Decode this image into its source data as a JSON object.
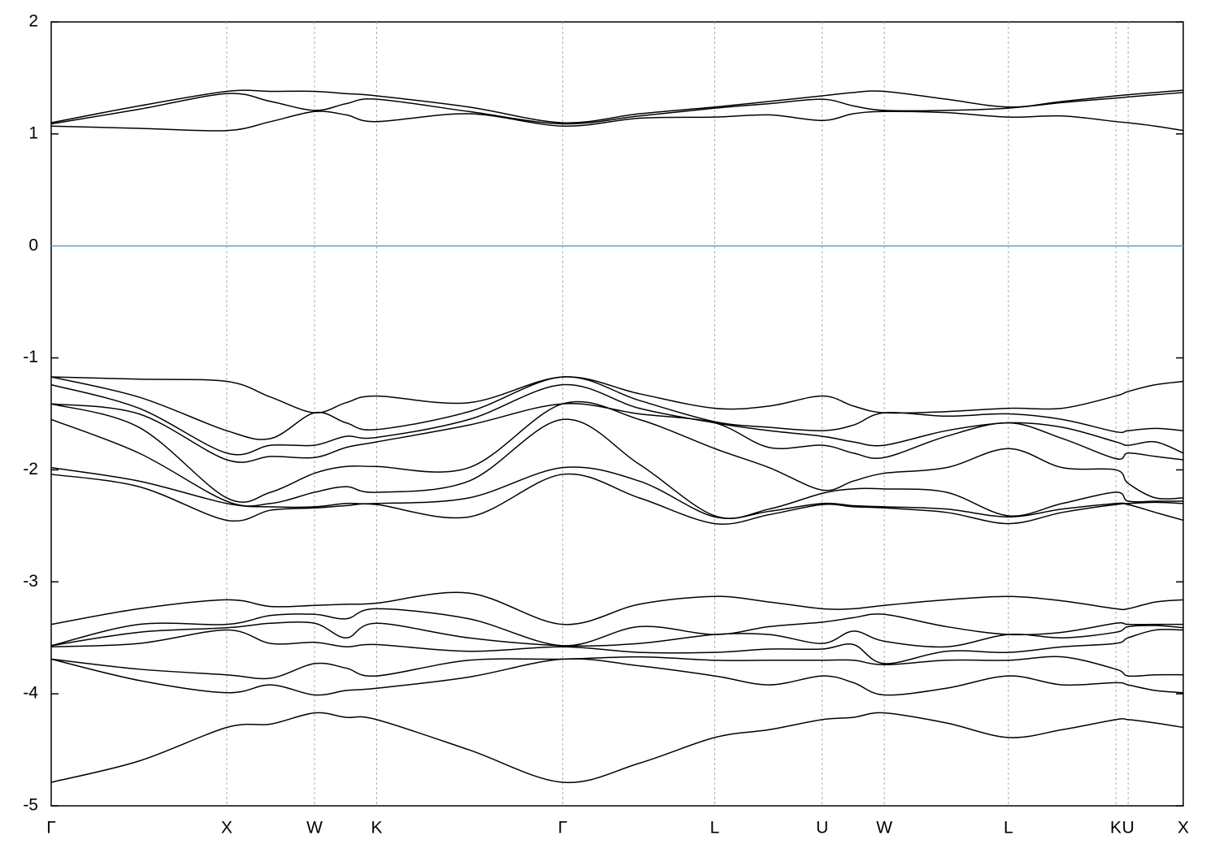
{
  "chart_data": {
    "type": "line",
    "x": [
      0,
      0.5,
      1,
      1.25,
      1.5,
      1.68,
      1.854,
      2.38,
      2.914,
      3.35,
      3.78,
      4.09,
      4.392,
      4.57,
      4.746,
      5.1,
      5.453,
      5.76,
      6.065,
      6.135,
      6.29,
      6.449
    ],
    "xlim": [
      0,
      6.449
    ],
    "xticks": [
      {
        "value": 0,
        "label": "Γ"
      },
      {
        "value": 1,
        "label": "X"
      },
      {
        "value": 1.5,
        "label": "W"
      },
      {
        "value": 1.854,
        "label": "K"
      },
      {
        "value": 2.914,
        "label": "Γ"
      },
      {
        "value": 3.78,
        "label": "L"
      },
      {
        "value": 4.392,
        "label": "U"
      },
      {
        "value": 4.746,
        "label": "W"
      },
      {
        "value": 5.453,
        "label": "L"
      },
      {
        "value": 6.065,
        "label": "K"
      },
      {
        "value": 6.135,
        "label": "U"
      },
      {
        "value": 6.449,
        "label": "X"
      }
    ],
    "xgrid": true,
    "ylim": [
      -5,
      2
    ],
    "yticks": [
      -5,
      -4,
      -3,
      -2,
      -1,
      0,
      1,
      2
    ],
    "hlines": [
      {
        "y": 0,
        "color": "#5aaec8"
      }
    ],
    "series": [
      {
        "color": "#000000",
        "values": [
          1.07,
          1.05,
          1.03,
          1.11,
          1.2,
          1.17,
          1.11,
          1.18,
          1.07,
          1.14,
          1.15,
          1.17,
          1.12,
          1.18,
          1.2,
          1.19,
          1.15,
          1.16,
          1.11,
          1.1,
          1.07,
          1.03
        ]
      },
      {
        "color": "#000000",
        "values": [
          1.09,
          1.22,
          1.36,
          1.29,
          1.21,
          1.27,
          1.31,
          1.2,
          1.09,
          1.16,
          1.23,
          1.27,
          1.31,
          1.25,
          1.21,
          1.21,
          1.23,
          1.28,
          1.32,
          1.33,
          1.35,
          1.37
        ]
      },
      {
        "color": "#000000",
        "values": [
          1.1,
          1.25,
          1.38,
          1.38,
          1.38,
          1.36,
          1.34,
          1.24,
          1.1,
          1.18,
          1.24,
          1.29,
          1.34,
          1.37,
          1.38,
          1.31,
          1.24,
          1.29,
          1.34,
          1.35,
          1.37,
          1.39
        ]
      },
      {
        "color": "#000000",
        "values": [
          -1.17,
          -1.19,
          -1.21,
          -1.35,
          -1.49,
          -1.4,
          -1.34,
          -1.4,
          -1.17,
          -1.32,
          -1.45,
          -1.43,
          -1.34,
          -1.43,
          -1.49,
          -1.48,
          -1.45,
          -1.45,
          -1.34,
          -1.3,
          -1.24,
          -1.21
        ]
      },
      {
        "color": "#000000",
        "values": [
          -1.17,
          -1.35,
          -1.65,
          -1.72,
          -1.49,
          -1.58,
          -1.64,
          -1.48,
          -1.17,
          -1.38,
          -1.57,
          -1.62,
          -1.65,
          -1.6,
          -1.49,
          -1.52,
          -1.5,
          -1.55,
          -1.66,
          -1.65,
          -1.63,
          -1.65
        ]
      },
      {
        "color": "#000000",
        "values": [
          -1.24,
          -1.45,
          -1.85,
          -1.78,
          -1.78,
          -1.7,
          -1.71,
          -1.55,
          -1.24,
          -1.45,
          -1.58,
          -1.65,
          -1.7,
          -1.75,
          -1.78,
          -1.65,
          -1.58,
          -1.62,
          -1.75,
          -1.78,
          -1.75,
          -1.85
        ]
      },
      {
        "color": "#000000",
        "values": [
          -1.41,
          -1.5,
          -1.91,
          -1.88,
          -1.89,
          -1.8,
          -1.75,
          -1.6,
          -1.41,
          -1.5,
          -1.58,
          -1.8,
          -1.78,
          -1.85,
          -1.89,
          -1.7,
          -1.58,
          -1.72,
          -1.9,
          -1.85,
          -1.88,
          -1.91
        ]
      },
      {
        "color": "#000000",
        "values": [
          -1.41,
          -1.62,
          -2.25,
          -2.2,
          -2.03,
          -1.97,
          -1.97,
          -1.98,
          -1.41,
          -1.55,
          -1.81,
          -1.98,
          -2.18,
          -2.1,
          -2.03,
          -1.98,
          -1.81,
          -1.98,
          -2.0,
          -2.12,
          -2.25,
          -2.25
        ]
      },
      {
        "color": "#000000",
        "values": [
          -1.55,
          -1.85,
          -2.28,
          -2.3,
          -2.2,
          -2.15,
          -2.2,
          -2.1,
          -1.55,
          -1.95,
          -2.41,
          -2.35,
          -2.21,
          -2.17,
          -2.17,
          -2.2,
          -2.41,
          -2.3,
          -2.2,
          -2.28,
          -2.28,
          -2.28
        ]
      },
      {
        "color": "#000000",
        "values": [
          -1.98,
          -2.1,
          -2.3,
          -2.33,
          -2.33,
          -2.3,
          -2.3,
          -2.25,
          -1.98,
          -2.1,
          -2.42,
          -2.37,
          -2.3,
          -2.32,
          -2.33,
          -2.35,
          -2.42,
          -2.35,
          -2.3,
          -2.3,
          -2.29,
          -2.3
        ]
      },
      {
        "color": "#000000",
        "values": [
          -2.04,
          -2.15,
          -2.45,
          -2.36,
          -2.34,
          -2.32,
          -2.31,
          -2.42,
          -2.04,
          -2.25,
          -2.48,
          -2.4,
          -2.31,
          -2.33,
          -2.34,
          -2.38,
          -2.48,
          -2.38,
          -2.31,
          -2.31,
          -2.38,
          -2.45
        ]
      },
      {
        "color": "#000000",
        "values": [
          -3.38,
          -3.24,
          -3.16,
          -3.22,
          -3.21,
          -3.2,
          -3.19,
          -3.1,
          -3.38,
          -3.2,
          -3.13,
          -3.18,
          -3.24,
          -3.24,
          -3.21,
          -3.16,
          -3.13,
          -3.17,
          -3.24,
          -3.24,
          -3.18,
          -3.16
        ]
      },
      {
        "color": "#000000",
        "values": [
          -3.57,
          -3.38,
          -3.38,
          -3.3,
          -3.29,
          -3.33,
          -3.24,
          -3.33,
          -3.57,
          -3.4,
          -3.47,
          -3.4,
          -3.36,
          -3.32,
          -3.29,
          -3.4,
          -3.47,
          -3.45,
          -3.37,
          -3.38,
          -3.38,
          -3.38
        ]
      },
      {
        "color": "#000000",
        "values": [
          -3.57,
          -3.45,
          -3.41,
          -3.37,
          -3.37,
          -3.5,
          -3.37,
          -3.5,
          -3.57,
          -3.55,
          -3.47,
          -3.47,
          -3.55,
          -3.44,
          -3.53,
          -3.58,
          -3.47,
          -3.5,
          -3.45,
          -3.4,
          -3.39,
          -3.41
        ]
      },
      {
        "color": "#000000",
        "values": [
          -3.58,
          -3.55,
          -3.43,
          -3.55,
          -3.54,
          -3.58,
          -3.56,
          -3.62,
          -3.58,
          -3.63,
          -3.63,
          -3.6,
          -3.6,
          -3.56,
          -3.73,
          -3.62,
          -3.63,
          -3.58,
          -3.55,
          -3.5,
          -3.43,
          -3.43
        ]
      },
      {
        "color": "#000000",
        "values": [
          -3.69,
          -3.78,
          -3.83,
          -3.86,
          -3.73,
          -3.77,
          -3.84,
          -3.7,
          -3.69,
          -3.67,
          -3.7,
          -3.7,
          -3.7,
          -3.7,
          -3.74,
          -3.7,
          -3.7,
          -3.67,
          -3.78,
          -3.84,
          -3.83,
          -3.83
        ]
      },
      {
        "color": "#000000",
        "values": [
          -3.69,
          -3.88,
          -3.99,
          -3.92,
          -4.01,
          -3.97,
          -3.95,
          -3.85,
          -3.69,
          -3.75,
          -3.84,
          -3.92,
          -3.84,
          -3.9,
          -4.01,
          -3.95,
          -3.84,
          -3.92,
          -3.9,
          -3.92,
          -3.97,
          -3.99
        ]
      },
      {
        "color": "#000000",
        "values": [
          -4.79,
          -4.6,
          -4.3,
          -4.27,
          -4.17,
          -4.21,
          -4.23,
          -4.5,
          -4.79,
          -4.62,
          -4.39,
          -4.32,
          -4.23,
          -4.21,
          -4.17,
          -4.26,
          -4.39,
          -4.32,
          -4.23,
          -4.23,
          -4.26,
          -4.3
        ]
      }
    ]
  }
}
